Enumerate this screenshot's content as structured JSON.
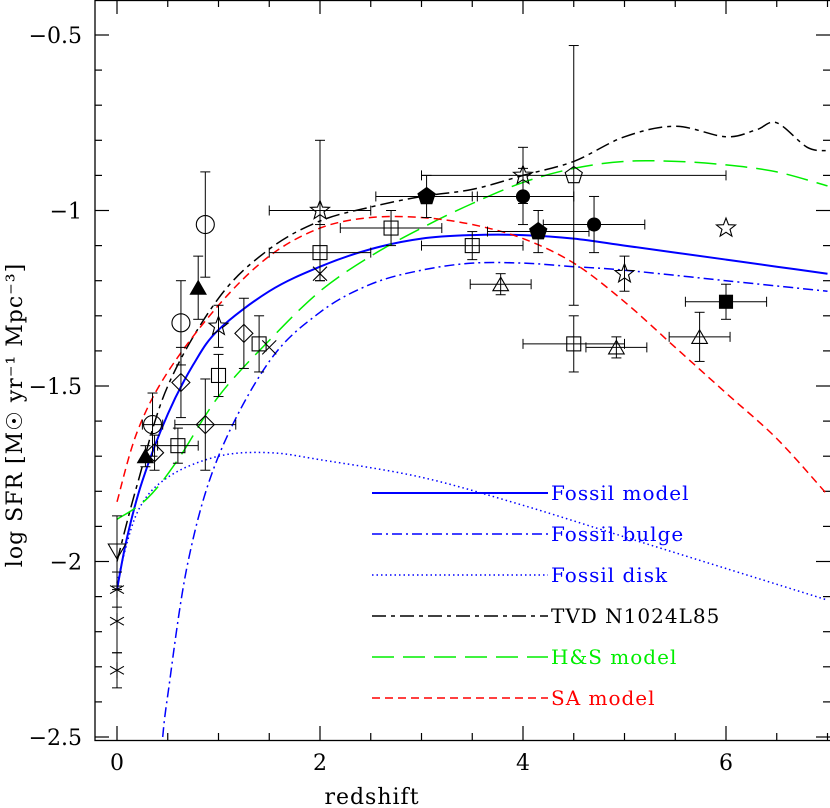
{
  "chart_data": {
    "type": "line",
    "title": "",
    "xlabel": "redshift",
    "ylabel": "log SFR [M☉ yr⁻¹ Mpc⁻³]",
    "xlim": [
      -0.2,
      7
    ],
    "ylim": [
      -2.5,
      -0.4
    ],
    "y_inverted": true,
    "x_ticks": [
      0,
      2,
      4,
      6
    ],
    "x_tick_labels": [
      "0",
      "2",
      "4",
      "6"
    ],
    "y_ticks": [
      -0.5,
      -1,
      -1.5,
      -2,
      -2.5
    ],
    "y_tick_labels": [
      "−0.5",
      "−1",
      "−1.5",
      "−2",
      "−2.5"
    ],
    "grid": false,
    "legend_position": "lower-right",
    "series": [
      {
        "name": "Fossil model",
        "color": "#0000ff",
        "dash": "solid",
        "x": [
          0,
          0.1,
          0.25,
          0.5,
          0.75,
          1,
          1.5,
          2,
          2.5,
          3,
          3.5,
          4,
          4.5,
          5,
          5.5,
          6,
          6.5,
          7
        ],
        "y": [
          -2.08,
          -1.93,
          -1.77,
          -1.58,
          -1.44,
          -1.34,
          -1.23,
          -1.16,
          -1.11,
          -1.08,
          -1.07,
          -1.07,
          -1.08,
          -1.1,
          -1.12,
          -1.14,
          -1.16,
          -1.18
        ]
      },
      {
        "name": "Fossil bulge",
        "color": "#0000ff",
        "dash": "dashdot",
        "x": [
          0.45,
          0.5,
          0.7,
          1,
          1.5,
          2,
          2.5,
          3,
          3.5,
          4,
          4.5,
          5,
          6,
          7
        ],
        "y": [
          -2.5,
          -2.38,
          -2.0,
          -1.7,
          -1.43,
          -1.29,
          -1.21,
          -1.17,
          -1.15,
          -1.15,
          -1.16,
          -1.17,
          -1.2,
          -1.23
        ]
      },
      {
        "name": "Fossil disk",
        "color": "#0000ff",
        "dash": "dotted",
        "x": [
          0,
          0.2,
          0.5,
          1,
          1.5,
          2,
          3,
          4,
          5,
          6,
          7
        ],
        "y": [
          -2.06,
          -1.86,
          -1.76,
          -1.7,
          -1.69,
          -1.71,
          -1.76,
          -1.84,
          -1.93,
          -2.02,
          -2.11
        ]
      },
      {
        "name": "TVD N1024L85",
        "color": "#000000",
        "dash": "dashlong",
        "x": [
          0,
          0.2,
          0.5,
          1,
          1.5,
          2,
          2.5,
          3,
          3.5,
          4,
          4.5,
          5,
          5.5,
          6,
          6.3,
          6.5,
          6.8,
          7
        ],
        "y": [
          -2.0,
          -1.78,
          -1.5,
          -1.25,
          -1.11,
          -1.03,
          -0.99,
          -0.96,
          -0.94,
          -0.9,
          -0.86,
          -0.79,
          -0.76,
          -0.79,
          -0.77,
          -0.75,
          -0.82,
          -0.83
        ]
      },
      {
        "name": "H&S model",
        "color": "#00ee00",
        "dash": "longdash",
        "x": [
          0,
          0.3,
          0.6,
          1,
          1.5,
          2,
          2.5,
          3,
          3.5,
          4,
          4.5,
          5,
          5.5,
          6,
          6.5,
          7
        ],
        "y": [
          -1.88,
          -1.82,
          -1.71,
          -1.53,
          -1.37,
          -1.23,
          -1.13,
          -1.05,
          -0.98,
          -0.92,
          -0.88,
          -0.86,
          -0.86,
          -0.87,
          -0.89,
          -0.93
        ]
      },
      {
        "name": "SA model",
        "color": "#ff0000",
        "dash": "dashed",
        "x": [
          0,
          0.2,
          0.5,
          1,
          1.5,
          2,
          2.5,
          3,
          3.5,
          4,
          4.5,
          5,
          5.5,
          6,
          6.5,
          7
        ],
        "y": [
          -1.83,
          -1.63,
          -1.46,
          -1.27,
          -1.13,
          -1.05,
          -1.02,
          -1.02,
          -1.04,
          -1.08,
          -1.15,
          -1.26,
          -1.39,
          -1.52,
          -1.65,
          -1.81
        ]
      }
    ],
    "observations": [
      {
        "marker": "star6",
        "fill": false,
        "x": 0,
        "y": -2.08,
        "yerr": 0.05
      },
      {
        "marker": "star6",
        "fill": false,
        "x": 0,
        "y": -2.17,
        "yerr": 0.09
      },
      {
        "marker": "star6",
        "fill": false,
        "x": 0,
        "y": -2.31,
        "yerr": 0.05
      },
      {
        "marker": "triangle-down",
        "fill": false,
        "x": 0,
        "y": -1.97,
        "yerr": 0.1
      },
      {
        "marker": "triangle",
        "fill": true,
        "x": 0.28,
        "y": -1.7,
        "yerr": 0.03
      },
      {
        "marker": "triangle",
        "fill": true,
        "x": 0.8,
        "y": -1.22,
        "yerr": 0.09
      },
      {
        "marker": "circle",
        "fill": false,
        "x": 0.35,
        "y": -1.61,
        "yerr": 0.09,
        "xerr": 0.1
      },
      {
        "marker": "circle",
        "fill": false,
        "x": 0.63,
        "y": -1.32,
        "yerr": 0.12
      },
      {
        "marker": "circle",
        "fill": false,
        "x": 0.87,
        "y": -1.04,
        "yerr": 0.15
      },
      {
        "marker": "diamond",
        "fill": false,
        "x": 0.37,
        "y": -1.69,
        "yerr": 0.05
      },
      {
        "marker": "diamond",
        "fill": false,
        "x": 0.63,
        "y": -1.49,
        "yerr": 0.1
      },
      {
        "marker": "diamond",
        "fill": false,
        "x": 0.87,
        "y": -1.61,
        "yerr": 0.13,
        "xerr": 0.3
      },
      {
        "marker": "diamond",
        "fill": false,
        "x": 1.25,
        "y": -1.35,
        "yerr": 0.1
      },
      {
        "marker": "square",
        "fill": false,
        "x": 0.6,
        "y": -1.67,
        "yerr": 0.05,
        "xerr": 0.2
      },
      {
        "marker": "square",
        "fill": false,
        "x": 1.0,
        "y": -1.47,
        "yerr": 0.06
      },
      {
        "marker": "square",
        "fill": false,
        "x": 1.4,
        "y": -1.38,
        "yerr": 0.08
      },
      {
        "marker": "square",
        "fill": false,
        "x": 2.0,
        "y": -1.12,
        "yerr": 0.08,
        "xerr": 0.5
      },
      {
        "marker": "square",
        "fill": false,
        "x": 2.7,
        "y": -1.05,
        "yerr": 0.05,
        "xerr": 0.5
      },
      {
        "marker": "square",
        "fill": false,
        "x": 3.5,
        "y": -1.1,
        "yerr": 0.04,
        "xerr": 0.5
      },
      {
        "marker": "square",
        "fill": false,
        "x": 4.5,
        "y": -1.38,
        "yerr": 0.08,
        "xerr": 0.5
      },
      {
        "marker": "star5",
        "fill": false,
        "x": 1.0,
        "y": -1.33,
        "yerr": 0.06
      },
      {
        "marker": "star5",
        "fill": false,
        "x": 2.0,
        "y": -1.0,
        "yerr": 0.2,
        "xerr": 0.5
      },
      {
        "marker": "star5",
        "fill": false,
        "x": 4.0,
        "y": -0.9,
        "yerr": 0.08
      },
      {
        "marker": "star5",
        "fill": false,
        "x": 5.0,
        "y": -1.18,
        "yerr": 0.05
      },
      {
        "marker": "star5",
        "fill": false,
        "x": 6.0,
        "y": -1.05
      },
      {
        "marker": "cross",
        "fill": false,
        "x": 1.5,
        "y": -1.39
      },
      {
        "marker": "cross",
        "fill": false,
        "x": 2.0,
        "y": -1.18
      },
      {
        "marker": "pentagon",
        "fill": false,
        "x": 4.5,
        "y": -0.9,
        "yerr": 0.37,
        "xerr": 1.5
      },
      {
        "marker": "pentagon",
        "fill": true,
        "x": 3.05,
        "y": -0.96,
        "yerr": 0.06,
        "xerr": 0.5
      },
      {
        "marker": "pentagon",
        "fill": true,
        "x": 4.15,
        "y": -1.06,
        "yerr": 0.06,
        "xerr": 0.5
      },
      {
        "marker": "circle",
        "fill": true,
        "x": 4.0,
        "y": -0.96,
        "yerr": 0.08,
        "xerr": 0.5
      },
      {
        "marker": "circle",
        "fill": true,
        "x": 4.7,
        "y": -1.04,
        "yerr": 0.08,
        "xerr": 0.5
      },
      {
        "marker": "triangle",
        "fill": false,
        "x": 3.78,
        "y": -1.21,
        "yerr": 0.03,
        "xerr": 0.3
      },
      {
        "marker": "triangle",
        "fill": false,
        "x": 4.92,
        "y": -1.39,
        "yerr": 0.03,
        "xerr": 0.3
      },
      {
        "marker": "triangle",
        "fill": false,
        "x": 5.74,
        "y": -1.36,
        "yerr": 0.07,
        "xerr": 0.3
      },
      {
        "marker": "square",
        "fill": true,
        "x": 6.0,
        "y": -1.26,
        "yerr": 0.05,
        "xerr": 0.4
      }
    ]
  }
}
